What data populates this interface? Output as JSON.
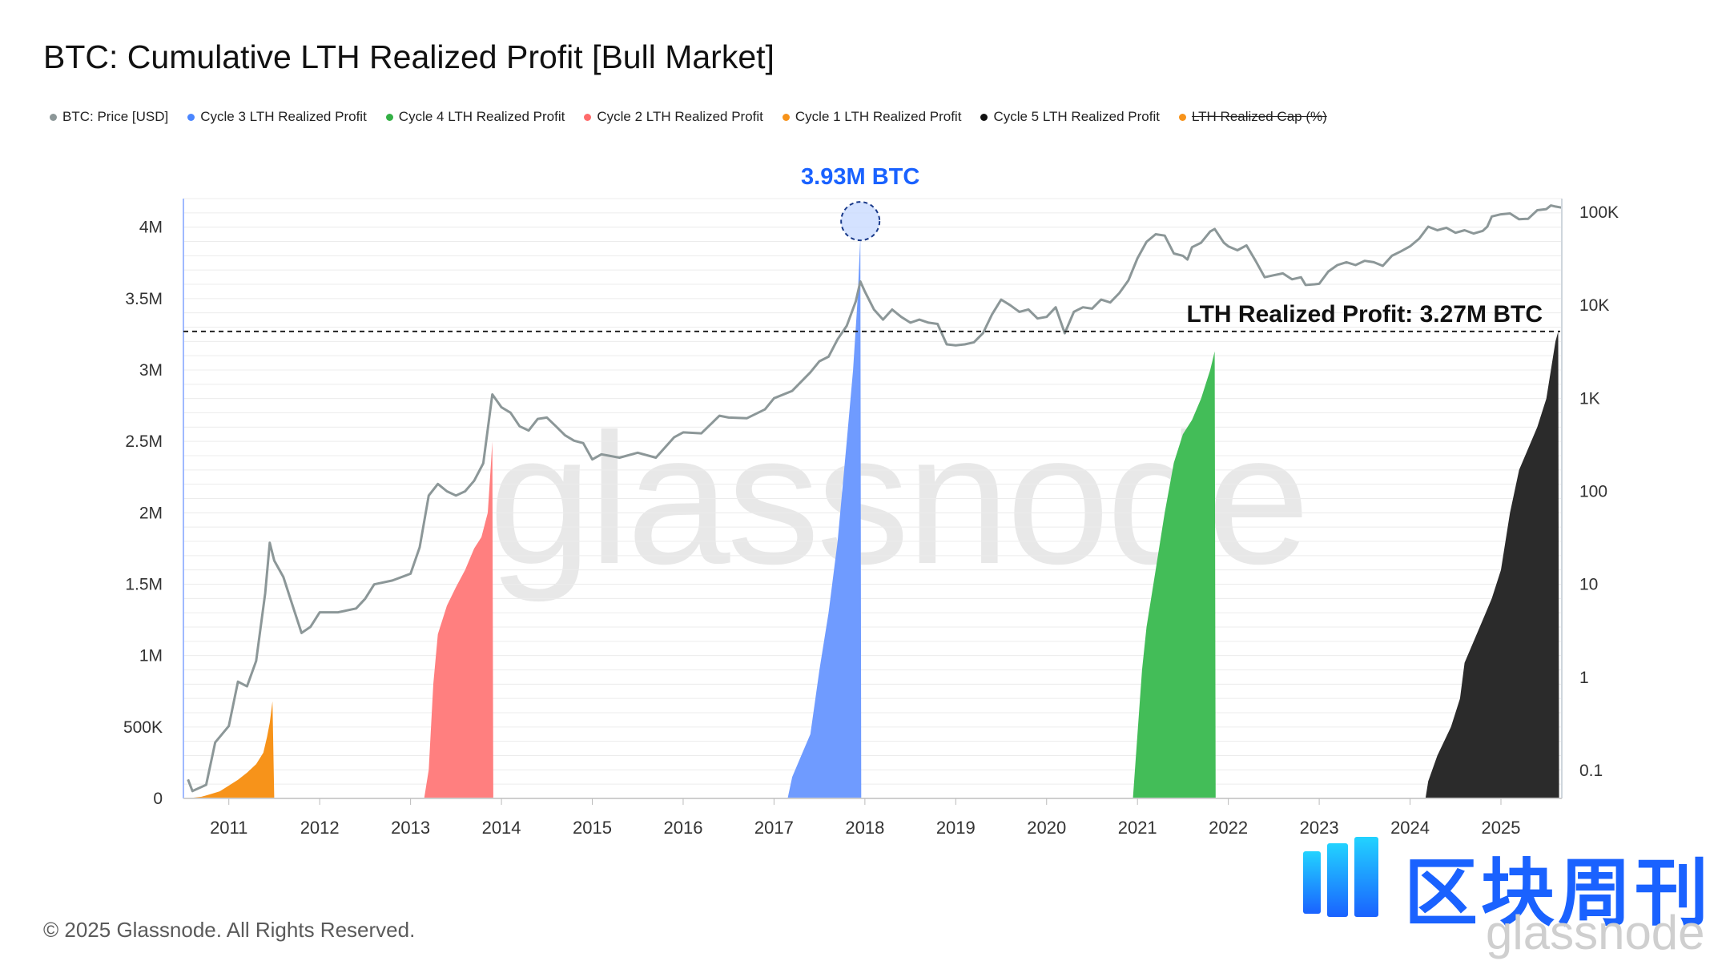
{
  "title": "BTC: Cumulative LTH Realized Profit [Bull Market]",
  "legend": [
    {
      "label": "BTC: Price [USD]",
      "color": "#8c9798",
      "strike": false
    },
    {
      "label": "Cycle 3 LTH Realized Profit",
      "color": "#4b86ff",
      "strike": false
    },
    {
      "label": "Cycle 4 LTH Realized Profit",
      "color": "#33b045",
      "strike": false
    },
    {
      "label": "Cycle 2 LTH Realized Profit",
      "color": "#ff6b6b",
      "strike": false
    },
    {
      "label": "Cycle 1 LTH Realized Profit",
      "color": "#f7931a",
      "strike": false
    },
    {
      "label": "Cycle 5 LTH Realized Profit",
      "color": "#111111",
      "strike": false
    },
    {
      "label": "LTH Realized Cap (%)",
      "color": "#f7931a",
      "strike": true
    }
  ],
  "chart_data": {
    "type": "area",
    "title": "BTC: Cumulative LTH Realized Profit [Bull Market]",
    "x_ticks": [
      "2011",
      "2012",
      "2013",
      "2014",
      "2015",
      "2016",
      "2017",
      "2018",
      "2019",
      "2020",
      "2021",
      "2022",
      "2023",
      "2024",
      "2025"
    ],
    "x_range": [
      2010.5,
      2025.67
    ],
    "y_left": {
      "ticks": [
        "0",
        "500K",
        "1M",
        "1.5M",
        "2M",
        "2.5M",
        "3M",
        "3.5M",
        "4M"
      ],
      "range": [
        0,
        4200000
      ]
    },
    "y_right": {
      "scale": "log",
      "ticks": [
        "0.1",
        "1",
        "10",
        "100",
        "1K",
        "10K",
        "100K"
      ],
      "range": [
        0.05,
        140000
      ]
    },
    "annotations": {
      "peak_label": "3.93M BTC",
      "reference_label": "LTH Realized Profit: 3.27M BTC",
      "peak": {
        "x": 2017.95,
        "y": 3930000
      },
      "reference_y": 3270000
    },
    "series": [
      {
        "name": "Cycle 1 LTH Realized Profit",
        "color": "#f7931a",
        "axis": "left",
        "type": "area",
        "points": [
          [
            2010.55,
            0
          ],
          [
            2010.6,
            5000
          ],
          [
            2010.7,
            12000
          ],
          [
            2010.8,
            30000
          ],
          [
            2010.9,
            50000
          ],
          [
            2011.0,
            90000
          ],
          [
            2011.1,
            130000
          ],
          [
            2011.2,
            180000
          ],
          [
            2011.3,
            240000
          ],
          [
            2011.38,
            320000
          ],
          [
            2011.42,
            430000
          ],
          [
            2011.45,
            530000
          ],
          [
            2011.48,
            680000
          ],
          [
            2011.5,
            0
          ]
        ]
      },
      {
        "name": "Cycle 2 LTH Realized Profit",
        "color": "#ff7f7f",
        "axis": "left",
        "type": "area",
        "points": [
          [
            2013.15,
            0
          ],
          [
            2013.2,
            200000
          ],
          [
            2013.25,
            800000
          ],
          [
            2013.3,
            1150000
          ],
          [
            2013.4,
            1350000
          ],
          [
            2013.5,
            1480000
          ],
          [
            2013.6,
            1600000
          ],
          [
            2013.7,
            1750000
          ],
          [
            2013.78,
            1830000
          ],
          [
            2013.85,
            2000000
          ],
          [
            2013.88,
            2300000
          ],
          [
            2013.9,
            2500000
          ],
          [
            2013.91,
            0
          ]
        ]
      },
      {
        "name": "Cycle 3 LTH Realized Profit",
        "color": "#6f9bff",
        "axis": "left",
        "type": "area",
        "points": [
          [
            2017.15,
            0
          ],
          [
            2017.2,
            150000
          ],
          [
            2017.3,
            300000
          ],
          [
            2017.4,
            450000
          ],
          [
            2017.5,
            900000
          ],
          [
            2017.6,
            1300000
          ],
          [
            2017.7,
            1800000
          ],
          [
            2017.8,
            2500000
          ],
          [
            2017.87,
            3000000
          ],
          [
            2017.92,
            3500000
          ],
          [
            2017.95,
            3930000
          ],
          [
            2017.96,
            0
          ]
        ]
      },
      {
        "name": "Cycle 4 LTH Realized Profit",
        "color": "#43bd58",
        "axis": "left",
        "type": "area",
        "points": [
          [
            2020.95,
            0
          ],
          [
            2021.0,
            450000
          ],
          [
            2021.05,
            900000
          ],
          [
            2021.1,
            1200000
          ],
          [
            2021.2,
            1600000
          ],
          [
            2021.3,
            2000000
          ],
          [
            2021.4,
            2350000
          ],
          [
            2021.5,
            2550000
          ],
          [
            2021.6,
            2650000
          ],
          [
            2021.7,
            2800000
          ],
          [
            2021.8,
            3000000
          ],
          [
            2021.85,
            3130000
          ],
          [
            2021.86,
            0
          ]
        ]
      },
      {
        "name": "Cycle 5 LTH Realized Profit",
        "color": "#2b2b2b",
        "axis": "left",
        "type": "area",
        "points": [
          [
            2024.17,
            0
          ],
          [
            2024.2,
            120000
          ],
          [
            2024.3,
            300000
          ],
          [
            2024.45,
            500000
          ],
          [
            2024.55,
            700000
          ],
          [
            2024.6,
            950000
          ],
          [
            2024.7,
            1100000
          ],
          [
            2024.8,
            1250000
          ],
          [
            2024.9,
            1400000
          ],
          [
            2025.0,
            1600000
          ],
          [
            2025.1,
            2000000
          ],
          [
            2025.2,
            2300000
          ],
          [
            2025.3,
            2450000
          ],
          [
            2025.4,
            2600000
          ],
          [
            2025.5,
            2800000
          ],
          [
            2025.55,
            3000000
          ],
          [
            2025.6,
            3200000
          ],
          [
            2025.63,
            3270000
          ],
          [
            2025.64,
            0
          ]
        ]
      },
      {
        "name": "BTC: Price [USD]",
        "color": "#8c9798",
        "axis": "right",
        "type": "line",
        "points": [
          [
            2010.55,
            0.08
          ],
          [
            2010.6,
            0.06
          ],
          [
            2010.75,
            0.07
          ],
          [
            2010.85,
            0.2
          ],
          [
            2011.0,
            0.3
          ],
          [
            2011.1,
            0.9
          ],
          [
            2011.2,
            0.8
          ],
          [
            2011.3,
            1.5
          ],
          [
            2011.4,
            8
          ],
          [
            2011.45,
            28
          ],
          [
            2011.5,
            18
          ],
          [
            2011.6,
            12
          ],
          [
            2011.7,
            6
          ],
          [
            2011.8,
            3
          ],
          [
            2011.9,
            3.5
          ],
          [
            2012.0,
            5
          ],
          [
            2012.1,
            5
          ],
          [
            2012.2,
            5
          ],
          [
            2012.4,
            5.5
          ],
          [
            2012.5,
            7
          ],
          [
            2012.6,
            10
          ],
          [
            2012.8,
            11
          ],
          [
            2013.0,
            13
          ],
          [
            2013.1,
            25
          ],
          [
            2013.2,
            90
          ],
          [
            2013.3,
            120
          ],
          [
            2013.4,
            100
          ],
          [
            2013.5,
            90
          ],
          [
            2013.6,
            100
          ],
          [
            2013.7,
            130
          ],
          [
            2013.8,
            200
          ],
          [
            2013.9,
            1100
          ],
          [
            2014.0,
            800
          ],
          [
            2014.1,
            700
          ],
          [
            2014.2,
            500
          ],
          [
            2014.3,
            450
          ],
          [
            2014.4,
            600
          ],
          [
            2014.5,
            620
          ],
          [
            2014.6,
            500
          ],
          [
            2014.7,
            400
          ],
          [
            2014.8,
            350
          ],
          [
            2014.9,
            330
          ],
          [
            2015.0,
            220
          ],
          [
            2015.1,
            250
          ],
          [
            2015.3,
            230
          ],
          [
            2015.5,
            260
          ],
          [
            2015.7,
            230
          ],
          [
            2015.9,
            380
          ],
          [
            2016.0,
            430
          ],
          [
            2016.2,
            420
          ],
          [
            2016.4,
            650
          ],
          [
            2016.5,
            620
          ],
          [
            2016.7,
            610
          ],
          [
            2016.9,
            760
          ],
          [
            2017.0,
            1000
          ],
          [
            2017.2,
            1200
          ],
          [
            2017.4,
            1900
          ],
          [
            2017.5,
            2500
          ],
          [
            2017.6,
            2800
          ],
          [
            2017.7,
            4300
          ],
          [
            2017.8,
            6000
          ],
          [
            2017.9,
            11000
          ],
          [
            2017.95,
            18000
          ],
          [
            2018.0,
            14000
          ],
          [
            2018.1,
            9000
          ],
          [
            2018.2,
            7000
          ],
          [
            2018.3,
            9000
          ],
          [
            2018.4,
            7500
          ],
          [
            2018.5,
            6500
          ],
          [
            2018.6,
            7000
          ],
          [
            2018.7,
            6500
          ],
          [
            2018.8,
            6300
          ],
          [
            2018.9,
            3800
          ],
          [
            2019.0,
            3700
          ],
          [
            2019.1,
            3800
          ],
          [
            2019.2,
            4000
          ],
          [
            2019.3,
            5000
          ],
          [
            2019.4,
            8000
          ],
          [
            2019.5,
            11500
          ],
          [
            2019.6,
            10000
          ],
          [
            2019.7,
            8500
          ],
          [
            2019.8,
            9000
          ],
          [
            2019.9,
            7200
          ],
          [
            2020.0,
            7500
          ],
          [
            2020.1,
            9500
          ],
          [
            2020.2,
            5000
          ],
          [
            2020.3,
            8500
          ],
          [
            2020.4,
            9500
          ],
          [
            2020.5,
            9200
          ],
          [
            2020.6,
            11500
          ],
          [
            2020.7,
            10700
          ],
          [
            2020.8,
            13500
          ],
          [
            2020.9,
            18500
          ],
          [
            2021.0,
            32000
          ],
          [
            2021.1,
            48000
          ],
          [
            2021.2,
            58000
          ],
          [
            2021.3,
            56000
          ],
          [
            2021.4,
            36000
          ],
          [
            2021.5,
            34000
          ],
          [
            2021.55,
            31000
          ],
          [
            2021.6,
            42000
          ],
          [
            2021.7,
            47000
          ],
          [
            2021.8,
            62000
          ],
          [
            2021.85,
            66000
          ],
          [
            2021.95,
            47000
          ],
          [
            2022.0,
            43000
          ],
          [
            2022.1,
            39000
          ],
          [
            2022.2,
            44000
          ],
          [
            2022.3,
            30000
          ],
          [
            2022.4,
            20000
          ],
          [
            2022.5,
            21000
          ],
          [
            2022.6,
            22000
          ],
          [
            2022.7,
            19000
          ],
          [
            2022.8,
            20000
          ],
          [
            2022.85,
            16500
          ],
          [
            2022.95,
            16800
          ],
          [
            2023.0,
            17000
          ],
          [
            2023.1,
            23000
          ],
          [
            2023.2,
            27000
          ],
          [
            2023.3,
            29000
          ],
          [
            2023.4,
            27000
          ],
          [
            2023.5,
            30000
          ],
          [
            2023.6,
            29000
          ],
          [
            2023.7,
            26500
          ],
          [
            2023.8,
            34000
          ],
          [
            2023.9,
            38000
          ],
          [
            2024.0,
            43000
          ],
          [
            2024.1,
            52000
          ],
          [
            2024.2,
            70000
          ],
          [
            2024.3,
            64000
          ],
          [
            2024.4,
            68000
          ],
          [
            2024.5,
            60000
          ],
          [
            2024.6,
            64000
          ],
          [
            2024.7,
            59000
          ],
          [
            2024.8,
            63000
          ],
          [
            2024.85,
            70000
          ],
          [
            2024.9,
            90000
          ],
          [
            2025.0,
            95000
          ],
          [
            2025.1,
            97000
          ],
          [
            2025.2,
            84000
          ],
          [
            2025.3,
            85000
          ],
          [
            2025.4,
            105000
          ],
          [
            2025.5,
            108000
          ],
          [
            2025.55,
            118000
          ],
          [
            2025.6,
            115000
          ],
          [
            2025.67,
            112000
          ]
        ]
      }
    ]
  },
  "background_watermark": "glassnode",
  "copyright": "© 2025 Glassnode. All Rights Reserved.",
  "brand": {
    "name": "区块周刊",
    "sub": "glassnode"
  }
}
